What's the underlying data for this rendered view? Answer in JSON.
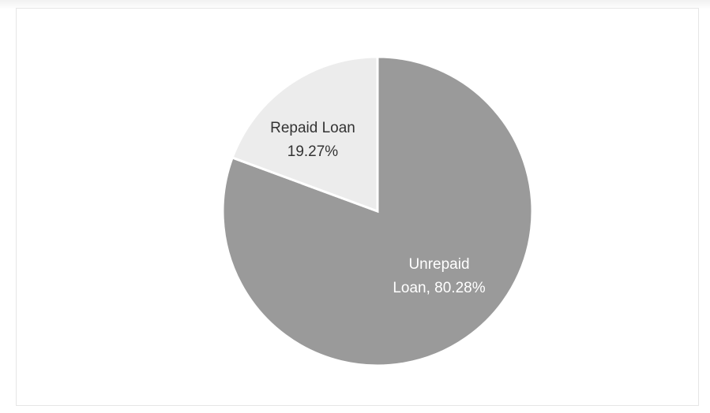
{
  "chart_data": {
    "type": "pie",
    "title": "",
    "start": "12 o'clock",
    "direction": "clockwise",
    "slices": [
      {
        "name": "Unrepaid Loan",
        "value": 80.28,
        "label_lines": [
          "Unrepaid",
          "Loan, 80.28%"
        ],
        "color": "#9a9a9a",
        "label_color": "#ffffff"
      },
      {
        "name": "Repaid Loan",
        "value": 19.27,
        "label_lines": [
          "Repaid Loan",
          "19.27%"
        ],
        "color": "#ececec",
        "label_color": "#333333"
      }
    ],
    "legend": "none",
    "edge_color": "#ffffff"
  }
}
